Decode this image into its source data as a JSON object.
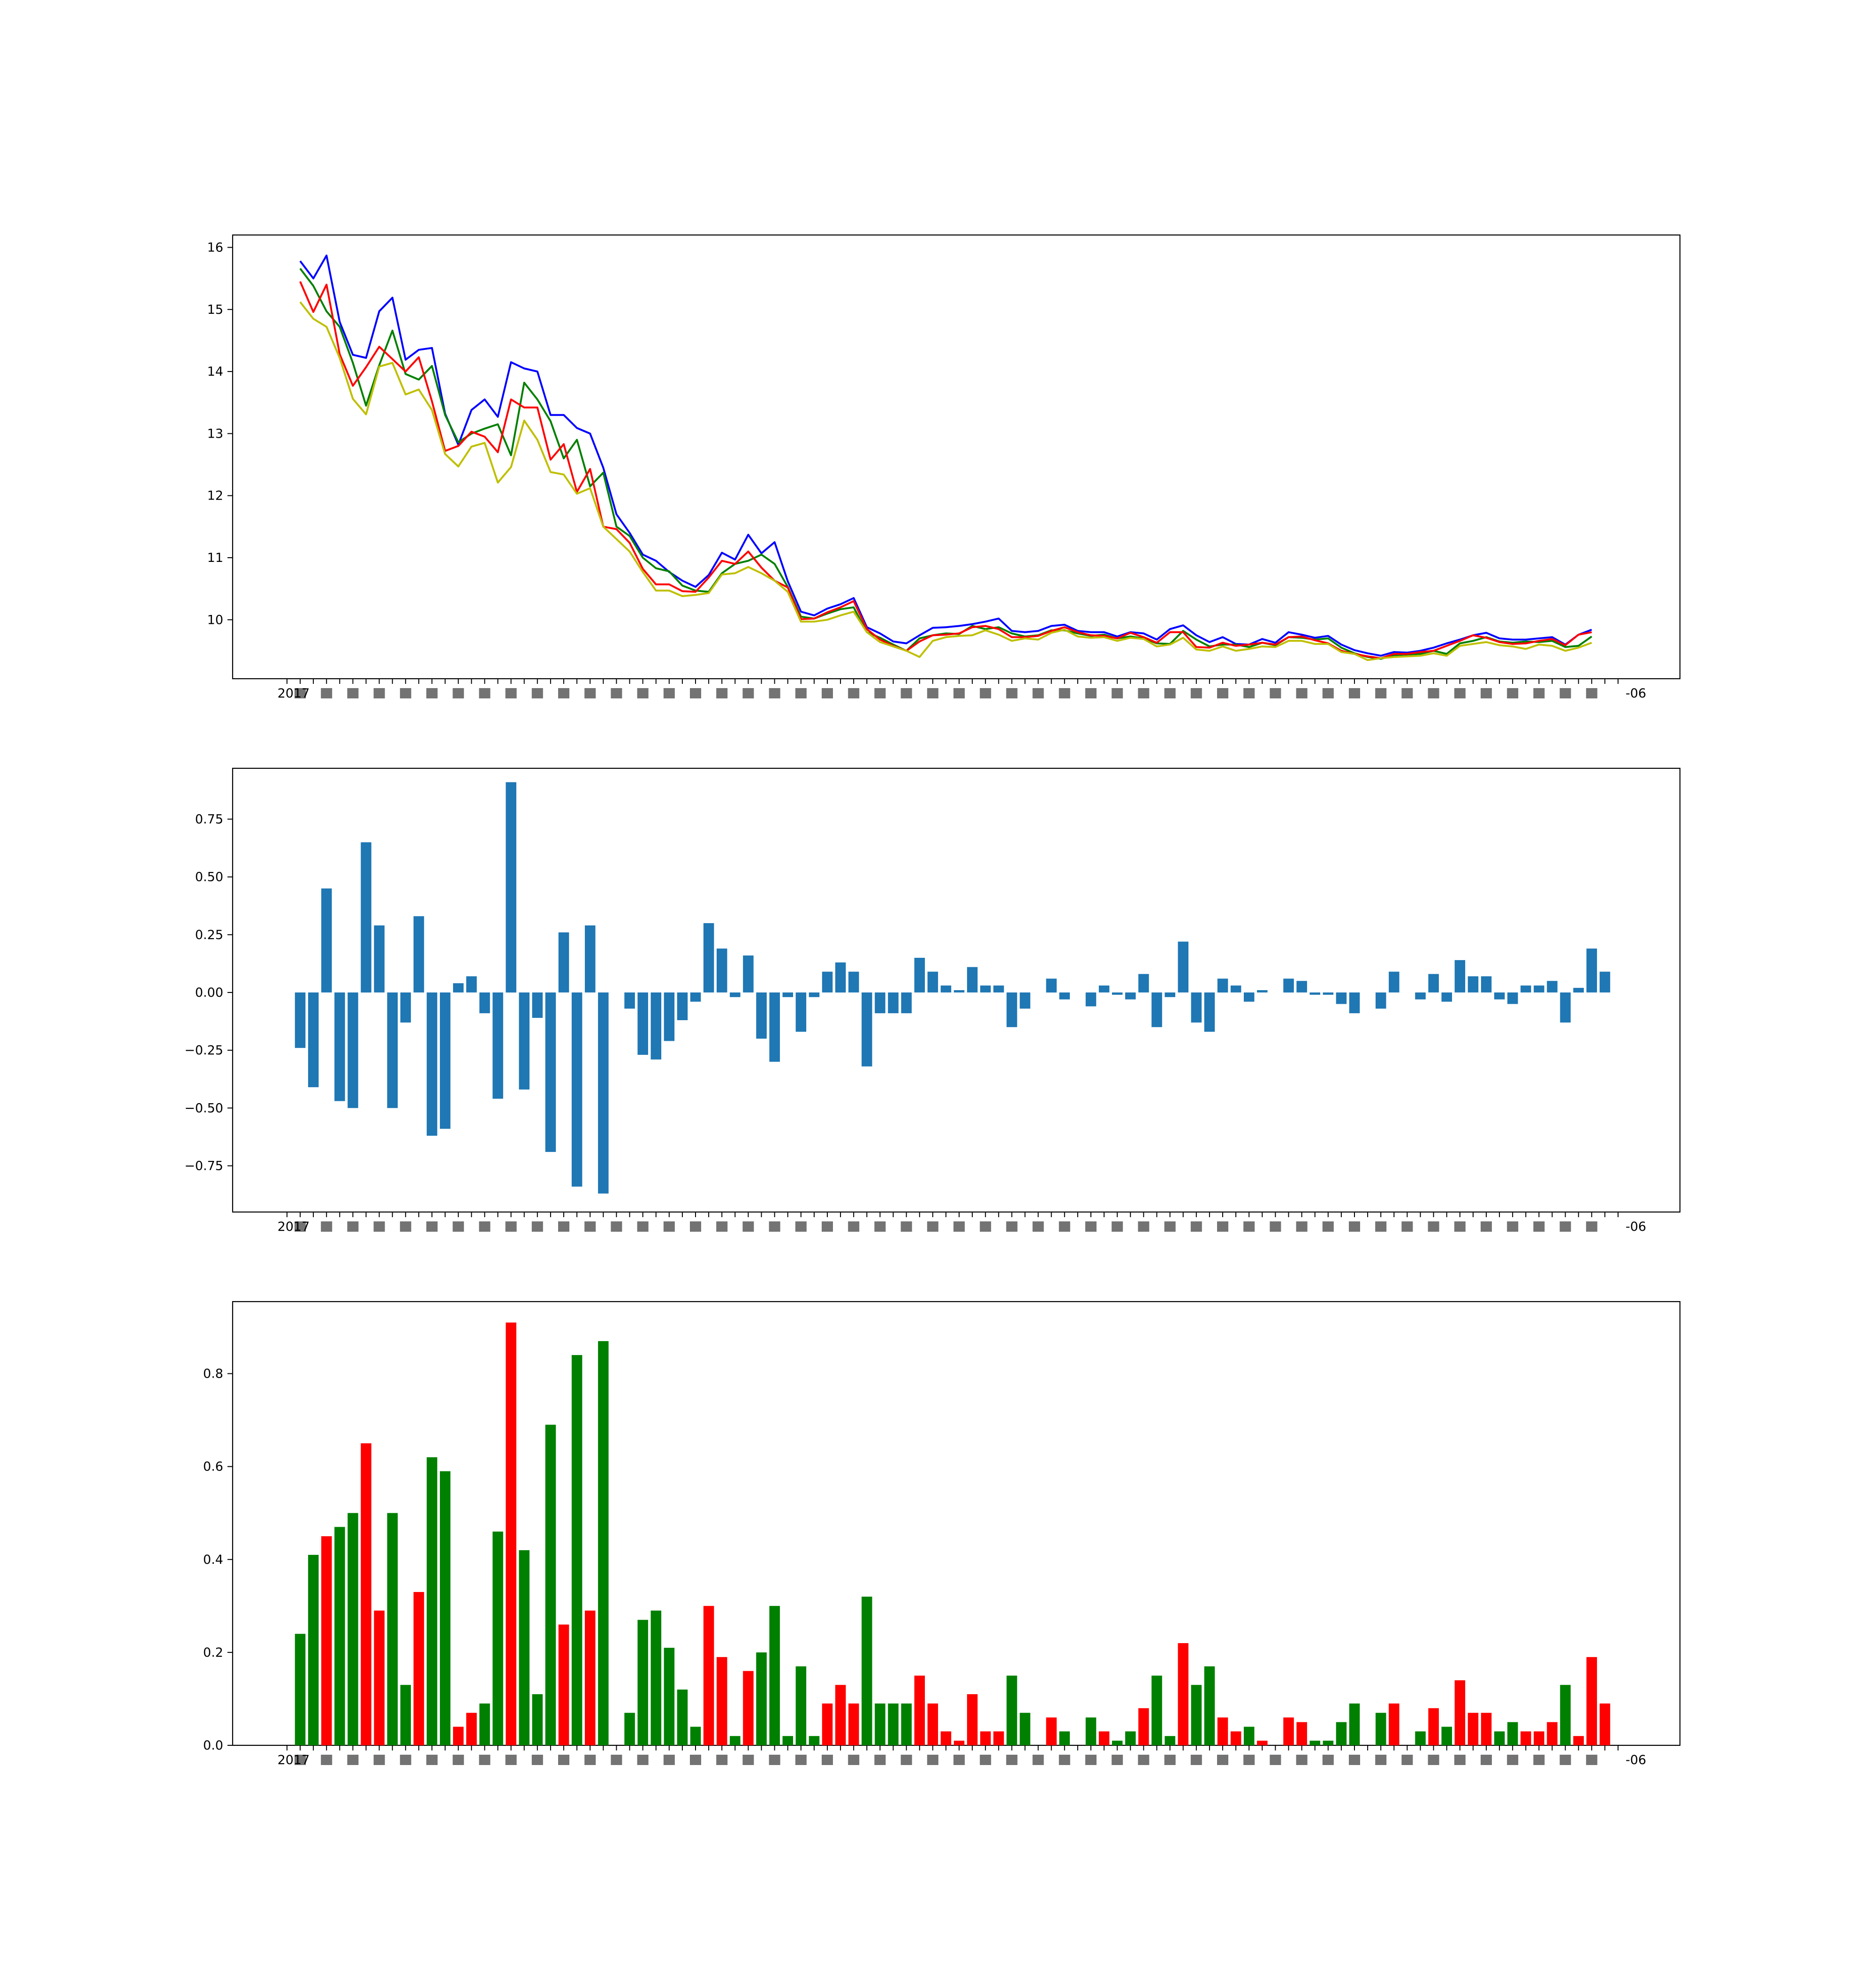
{
  "figure": {
    "background": "#ffffff"
  },
  "chart_data": [
    {
      "type": "line",
      "title": "",
      "xlabel": "",
      "ylabel": "",
      "ylim": [
        9.05,
        16.2
      ],
      "yticks": [
        10,
        11,
        12,
        13,
        14,
        15,
        16
      ],
      "ytick_labels": [
        "10",
        "11",
        "12",
        "13",
        "14",
        "15",
        "16"
      ],
      "xtick_label_first": "2017",
      "xtick_label_last": "-06",
      "grid": false,
      "series": [
        {
          "color": "#0000ff",
          "values": [
            15.78,
            15.5,
            15.87,
            14.8,
            14.27,
            14.22,
            14.97,
            15.19,
            14.19,
            14.35,
            14.38,
            13.32,
            12.82,
            13.38,
            13.55,
            13.27,
            14.15,
            14.05,
            14.0,
            13.3,
            13.3,
            13.09,
            13.0,
            12.45,
            11.7,
            11.4,
            11.05,
            10.95,
            10.77,
            10.63,
            10.53,
            10.72,
            11.08,
            10.97,
            11.37,
            11.07,
            11.25,
            10.62,
            10.13,
            10.07,
            10.18,
            10.25,
            10.35,
            9.88,
            9.78,
            9.65,
            9.62,
            9.75,
            9.87,
            9.88,
            9.9,
            9.93,
            9.97,
            10.02,
            9.82,
            9.8,
            9.82,
            9.9,
            9.92,
            9.82,
            9.8,
            9.8,
            9.73,
            9.8,
            9.78,
            9.68,
            9.85,
            9.91,
            9.75,
            9.64,
            9.72,
            9.61,
            9.6,
            9.69,
            9.63,
            9.8,
            9.76,
            9.71,
            9.74,
            9.6,
            9.51,
            9.46,
            9.42,
            9.48,
            9.47,
            9.5,
            9.55,
            9.62,
            9.68,
            9.75,
            9.79,
            9.7,
            9.68,
            9.68,
            9.7,
            9.72,
            9.6,
            9.76,
            9.84
          ]
        },
        {
          "color": "#008000",
          "values": [
            15.66,
            15.38,
            14.97,
            14.72,
            14.14,
            13.45,
            14.1,
            14.66,
            13.96,
            13.87,
            14.09,
            13.3,
            12.86,
            13.0,
            13.08,
            13.15,
            12.65,
            13.82,
            13.55,
            13.2,
            12.6,
            12.9,
            12.15,
            12.37,
            11.5,
            11.35,
            11.0,
            10.83,
            10.78,
            10.55,
            10.47,
            10.45,
            10.75,
            10.9,
            10.95,
            11.05,
            10.9,
            10.53,
            10.05,
            10.02,
            10.1,
            10.17,
            10.2,
            9.8,
            9.71,
            9.6,
            9.5,
            9.7,
            9.75,
            9.78,
            9.77,
            9.9,
            9.85,
            9.88,
            9.78,
            9.73,
            9.75,
            9.83,
            9.83,
            9.78,
            9.74,
            9.76,
            9.7,
            9.73,
            9.7,
            9.62,
            9.61,
            9.82,
            9.68,
            9.57,
            9.6,
            9.6,
            9.56,
            9.63,
            9.59,
            9.72,
            9.71,
            9.68,
            9.7,
            9.55,
            9.46,
            9.4,
            9.37,
            9.43,
            9.44,
            9.45,
            9.5,
            9.45,
            9.62,
            9.66,
            9.72,
            9.65,
            9.63,
            9.65,
            9.64,
            9.66,
            9.56,
            9.58,
            9.73
          ]
        },
        {
          "color": "#ff0000",
          "values": [
            15.45,
            14.96,
            15.4,
            14.28,
            13.77,
            14.07,
            14.4,
            14.2,
            14.0,
            14.23,
            13.52,
            12.72,
            12.8,
            13.03,
            12.95,
            12.7,
            13.55,
            13.42,
            13.42,
            12.58,
            12.83,
            12.06,
            12.43,
            11.5,
            11.46,
            11.24,
            10.82,
            10.57,
            10.57,
            10.46,
            10.45,
            10.68,
            10.95,
            10.9,
            11.1,
            10.84,
            10.63,
            10.52,
            10.01,
            10.02,
            10.12,
            10.2,
            10.3,
            9.85,
            9.68,
            9.58,
            9.5,
            9.65,
            9.75,
            9.76,
            9.78,
            9.88,
            9.9,
            9.85,
            9.72,
            9.72,
            9.74,
            9.82,
            9.88,
            9.8,
            9.75,
            9.74,
            9.7,
            9.79,
            9.72,
            9.63,
            9.8,
            9.8,
            9.56,
            9.55,
            9.63,
            9.58,
            9.6,
            9.63,
            9.6,
            9.72,
            9.73,
            9.67,
            9.62,
            9.5,
            9.45,
            9.41,
            9.38,
            9.45,
            9.45,
            9.48,
            9.5,
            9.58,
            9.66,
            9.75,
            9.71,
            9.64,
            9.61,
            9.62,
            9.66,
            9.69,
            9.59,
            9.76,
            9.8
          ]
        },
        {
          "color": "#bfbf00",
          "values": [
            15.12,
            14.85,
            14.72,
            14.22,
            13.56,
            13.31,
            14.08,
            14.14,
            13.63,
            13.71,
            13.38,
            12.67,
            12.47,
            12.79,
            12.85,
            12.21,
            12.46,
            13.21,
            12.9,
            12.38,
            12.34,
            12.03,
            12.12,
            11.5,
            11.3,
            11.1,
            10.77,
            10.47,
            10.47,
            10.38,
            10.4,
            10.43,
            10.73,
            10.75,
            10.85,
            10.75,
            10.63,
            10.45,
            9.97,
            9.97,
            10.0,
            10.07,
            10.13,
            9.8,
            9.64,
            9.57,
            9.5,
            9.4,
            9.66,
            9.72,
            9.74,
            9.75,
            9.83,
            9.76,
            9.66,
            9.7,
            9.68,
            9.79,
            9.84,
            9.73,
            9.71,
            9.72,
            9.66,
            9.71,
            9.69,
            9.57,
            9.6,
            9.71,
            9.52,
            9.5,
            9.57,
            9.5,
            9.53,
            9.57,
            9.56,
            9.66,
            9.66,
            9.61,
            9.61,
            9.48,
            9.45,
            9.35,
            9.38,
            9.4,
            9.41,
            9.42,
            9.46,
            9.42,
            9.58,
            9.61,
            9.64,
            9.59,
            9.57,
            9.53,
            9.6,
            9.58,
            9.5,
            9.55,
            9.63
          ]
        }
      ]
    },
    {
      "type": "bar",
      "title": "",
      "xlabel": "",
      "ylabel": "",
      "ylim": [
        -0.95,
        0.97
      ],
      "yticks": [
        -0.75,
        -0.5,
        -0.25,
        0.0,
        0.25,
        0.5,
        0.75
      ],
      "ytick_labels": [
        "−0.75",
        "−0.50",
        "−0.25",
        "0.00",
        "0.25",
        "0.50",
        "0.75"
      ],
      "xtick_label_first": "2017",
      "xtick_label_last": "-06",
      "grid": false,
      "color": "#1f77b4",
      "values": [
        -0.24,
        -0.41,
        0.45,
        -0.47,
        -0.5,
        0.65,
        0.29,
        -0.5,
        -0.13,
        0.33,
        -0.62,
        -0.59,
        0.04,
        0.07,
        -0.09,
        -0.46,
        0.91,
        -0.42,
        -0.11,
        -0.69,
        0.26,
        -0.84,
        0.29,
        -0.87,
        0,
        -0.07,
        -0.27,
        -0.29,
        -0.21,
        -0.12,
        -0.04,
        0.3,
        0.19,
        -0.02,
        0.16,
        -0.2,
        -0.3,
        -0.02,
        -0.17,
        -0.02,
        0.09,
        0.13,
        0.09,
        -0.32,
        -0.09,
        -0.09,
        -0.09,
        0.15,
        0.09,
        0.03,
        0.01,
        0.11,
        0.03,
        0.03,
        -0.15,
        -0.07,
        0,
        0.06,
        -0.03,
        0,
        -0.06,
        0.03,
        -0.01,
        -0.03,
        0.08,
        -0.15,
        -0.02,
        0.22,
        -0.13,
        -0.17,
        0.06,
        0.03,
        -0.04,
        0.01,
        0,
        0.06,
        0.05,
        -0.01,
        -0.01,
        -0.05,
        -0.09,
        0,
        -0.07,
        0.09,
        0,
        -0.03,
        0.08,
        -0.04,
        0.14,
        0.07,
        0.07,
        -0.03,
        -0.05,
        0.03,
        0.03,
        0.05,
        -0.13,
        0.02,
        0.19,
        0.09
      ]
    },
    {
      "type": "bar",
      "title": "",
      "xlabel": "",
      "ylabel": "",
      "ylim": [
        0,
        0.955
      ],
      "yticks": [
        0.0,
        0.2,
        0.4,
        0.6,
        0.8
      ],
      "ytick_labels": [
        "0.0",
        "0.2",
        "0.4",
        "0.6",
        "0.8"
      ],
      "xtick_label_first": "2017",
      "xtick_label_last": "-06",
      "grid": false,
      "colors": {
        "up": "#ff0000",
        "down": "#008000"
      },
      "values": [
        0.24,
        0.41,
        0.45,
        0.47,
        0.5,
        0.65,
        0.29,
        0.5,
        0.13,
        0.33,
        0.62,
        0.59,
        0.04,
        0.07,
        0.09,
        0.46,
        0.91,
        0.42,
        0.11,
        0.69,
        0.26,
        0.84,
        0.29,
        0.87,
        0,
        0.07,
        0.27,
        0.29,
        0.21,
        0.12,
        0.04,
        0.3,
        0.19,
        0.02,
        0.16,
        0.2,
        0.3,
        0.02,
        0.17,
        0.02,
        0.09,
        0.13,
        0.09,
        0.32,
        0.09,
        0.09,
        0.09,
        0.15,
        0.09,
        0.03,
        0.01,
        0.11,
        0.03,
        0.03,
        0.15,
        0.07,
        0,
        0.06,
        0.03,
        0,
        0.06,
        0.03,
        0.01,
        0.03,
        0.08,
        0.15,
        0.02,
        0.22,
        0.13,
        0.17,
        0.06,
        0.03,
        0.04,
        0.01,
        0,
        0.06,
        0.05,
        0.01,
        0.01,
        0.05,
        0.09,
        0,
        0.07,
        0.09,
        0,
        0.03,
        0.08,
        0.04,
        0.14,
        0.07,
        0.07,
        0.03,
        0.05,
        0.03,
        0.03,
        0.05,
        0.13,
        0.02,
        0.19,
        0.09
      ],
      "direction": [
        "down",
        "down",
        "up",
        "down",
        "down",
        "up",
        "up",
        "down",
        "down",
        "up",
        "down",
        "down",
        "up",
        "up",
        "down",
        "down",
        "up",
        "down",
        "down",
        "down",
        "up",
        "down",
        "up",
        "down",
        "up",
        "down",
        "down",
        "down",
        "down",
        "down",
        "down",
        "up",
        "up",
        "down",
        "up",
        "down",
        "down",
        "down",
        "down",
        "down",
        "up",
        "up",
        "up",
        "down",
        "down",
        "down",
        "down",
        "up",
        "up",
        "up",
        "up",
        "up",
        "up",
        "up",
        "down",
        "down",
        "up",
        "up",
        "down",
        "up",
        "down",
        "up",
        "down",
        "down",
        "up",
        "down",
        "down",
        "up",
        "down",
        "down",
        "up",
        "up",
        "down",
        "up",
        "up",
        "up",
        "up",
        "down",
        "down",
        "down",
        "down",
        "up",
        "down",
        "up",
        "up",
        "down",
        "up",
        "down",
        "up",
        "up",
        "up",
        "down",
        "down",
        "up",
        "up",
        "up",
        "down",
        "up",
        "up",
        "up"
      ]
    }
  ]
}
